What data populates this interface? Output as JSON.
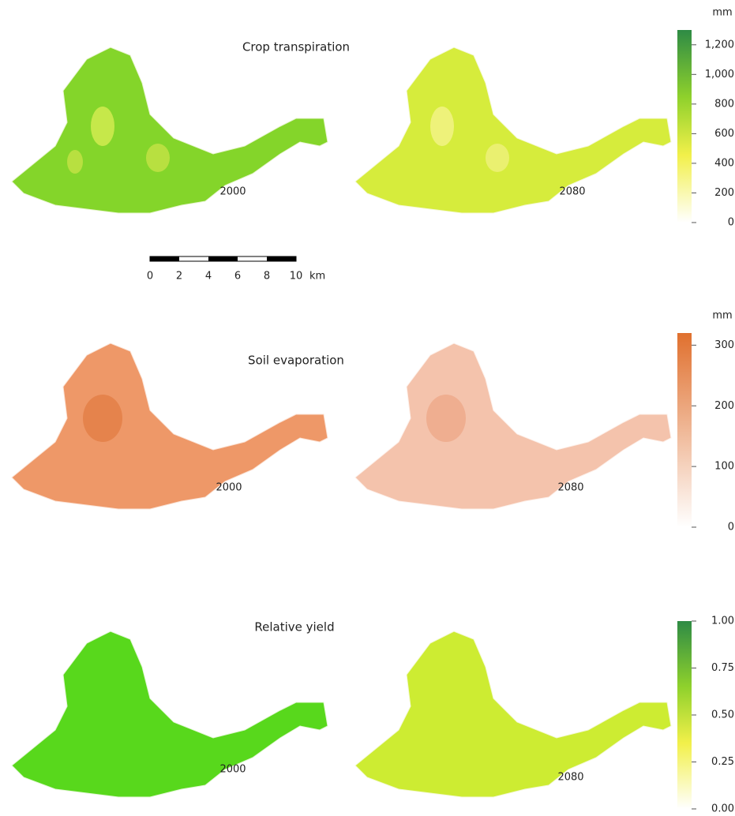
{
  "panels": [
    {
      "title": "Crop transpiration",
      "left_label": "2000",
      "right_label": "2080",
      "unit": "mm",
      "lim": [
        0,
        1300
      ],
      "ticks": [
        0,
        200,
        400,
        600,
        800,
        {
          "value": 1000,
          "label": "1,000"
        },
        {
          "value": 1200,
          "label": "1,200"
        }
      ]
    },
    {
      "title": "Soil evaporation",
      "left_label": "2000",
      "right_label": "2080",
      "unit": "mm",
      "lim": [
        0,
        320
      ],
      "ticks": [
        0,
        100,
        200,
        300
      ]
    },
    {
      "title": "Relative yield",
      "left_label": "2000",
      "right_label": "2080",
      "lim": [
        0,
        1
      ],
      "ticks": [
        {
          "value": 0,
          "label": "0.00"
        },
        {
          "value": 0.25,
          "label": "0.25"
        },
        {
          "value": 0.5,
          "label": "0.50"
        },
        {
          "value": 0.75,
          "label": "0.75"
        },
        {
          "value": 1,
          "label": "1.00"
        }
      ]
    }
  ],
  "scale_bar": {
    "labels": [
      "0",
      "2",
      "4",
      "6",
      "8",
      "10"
    ],
    "unit": "km"
  }
}
